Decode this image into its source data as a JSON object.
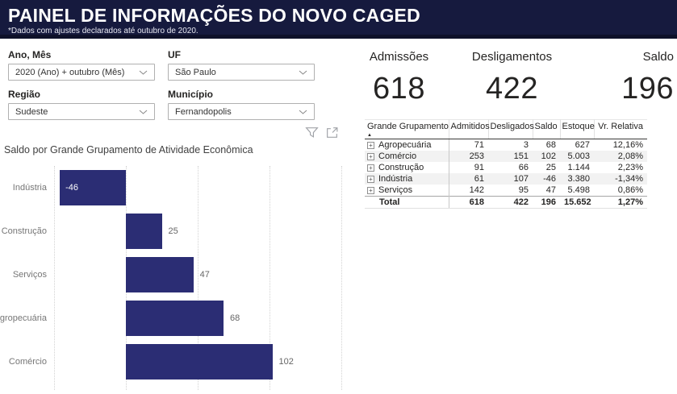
{
  "header": {
    "title": "PAINEL DE INFORMAÇÕES DO NOVO CAGED",
    "subtitle": "*Dados com ajustes declarados até outubro de 2020."
  },
  "filters": [
    {
      "label": "Ano, Mês",
      "value": "2020 (Ano) + outubro (Mês)"
    },
    {
      "label": "UF",
      "value": "São Paulo"
    },
    {
      "label": "Região",
      "value": "Sudeste"
    },
    {
      "label": "Município",
      "value": "Fernandopolis"
    }
  ],
  "kpis": [
    {
      "label": "Admissões",
      "value": "618"
    },
    {
      "label": "Desligamentos",
      "value": "422"
    },
    {
      "label": "Saldo",
      "value": "196"
    }
  ],
  "table": {
    "columns": [
      "Grande Grupamento",
      "Admitidos",
      "Desligados",
      "Saldo",
      "Estoque",
      "Vr. Relativa"
    ],
    "rows": [
      {
        "name": "Agropecuária",
        "values": [
          "71",
          "3",
          "68",
          "627",
          "12,16%"
        ]
      },
      {
        "name": "Comércio",
        "values": [
          "253",
          "151",
          "102",
          "5.003",
          "2,08%"
        ]
      },
      {
        "name": "Construção",
        "values": [
          "91",
          "66",
          "25",
          "1.144",
          "2,23%"
        ]
      },
      {
        "name": "Indústria",
        "values": [
          "61",
          "107",
          "-46",
          "3.380",
          "-1,34%"
        ]
      },
      {
        "name": "Serviços",
        "values": [
          "142",
          "95",
          "47",
          "5.498",
          "0,86%"
        ]
      }
    ],
    "total": {
      "name": "Total",
      "values": [
        "618",
        "422",
        "196",
        "15.652",
        "1,27%"
      ]
    }
  },
  "chart_data": {
    "type": "bar",
    "orientation": "horizontal",
    "title": "Saldo por Grande Grupamento de Atividade Econômica",
    "categories": [
      "Indústria",
      "Construção",
      "Serviços",
      "Agropecuária",
      "Comércio"
    ],
    "values": [
      -46,
      25,
      47,
      68,
      102
    ],
    "xlabel": "",
    "ylabel": "",
    "xlim": [
      -50,
      150
    ],
    "gridlines": [
      -50,
      0,
      50,
      100,
      150
    ],
    "grid": "dotted",
    "bar_color": "#2b2d74",
    "data_labels": true
  },
  "icons": {
    "sort_ascending": "▲",
    "expand_plus": "+"
  },
  "colors": {
    "header_bg": "#161a3e",
    "header_border": "#0e1129",
    "bar": "#2b2d74",
    "text_dark": "#252423",
    "row_stripe": "#f2f2f2"
  }
}
